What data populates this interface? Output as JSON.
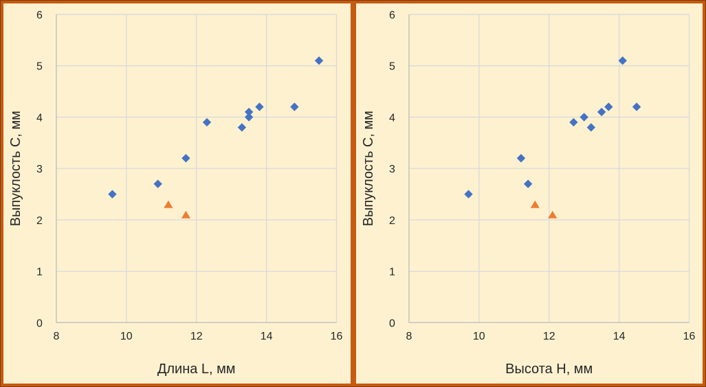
{
  "window": {
    "description": "Two side-by-side scatter charts on cream panels with orange borders"
  },
  "style": {
    "background": "#FDF1D0",
    "panel_border": "#C55A11",
    "outer_border": "#7D3C08",
    "gridline_color": "#D9D9D9",
    "axis_line_color": "#BFBFBF",
    "text_color": "#262626",
    "series1_color": "#4472C4",
    "series2_color": "#ED7D31"
  },
  "chart_data": [
    {
      "type": "scatter",
      "title": "",
      "xlabel": "Длина L, мм",
      "ylabel": "Выпуклость С, мм",
      "xlim": [
        8,
        16
      ],
      "ylim": [
        0,
        6
      ],
      "xticks": [
        8,
        10,
        12,
        14,
        16
      ],
      "yticks": [
        0,
        1,
        2,
        3,
        4,
        5,
        6
      ],
      "grid": true,
      "legend": "none",
      "series": [
        {
          "name": "blue-diamond-series",
          "marker": "diamond",
          "color": "#4472C4",
          "points": [
            [
              9.6,
              2.5
            ],
            [
              10.9,
              2.7
            ],
            [
              11.7,
              3.2
            ],
            [
              12.3,
              3.9
            ],
            [
              13.3,
              3.8
            ],
            [
              13.5,
              4.0
            ],
            [
              13.5,
              4.1
            ],
            [
              13.8,
              4.2
            ],
            [
              14.8,
              4.2
            ],
            [
              15.5,
              5.1
            ]
          ]
        },
        {
          "name": "orange-triangle-series",
          "marker": "triangle",
          "color": "#ED7D31",
          "points": [
            [
              11.2,
              2.3
            ],
            [
              11.7,
              2.1
            ]
          ]
        }
      ]
    },
    {
      "type": "scatter",
      "title": "",
      "xlabel": "Высота H, мм",
      "ylabel": "Выпуклость С, мм",
      "xlim": [
        8,
        16
      ],
      "ylim": [
        0,
        6
      ],
      "xticks": [
        8,
        10,
        12,
        14,
        16
      ],
      "yticks": [
        0,
        1,
        2,
        3,
        4,
        5,
        6
      ],
      "grid": true,
      "legend": "none",
      "series": [
        {
          "name": "blue-diamond-series",
          "marker": "diamond",
          "color": "#4472C4",
          "points": [
            [
              9.7,
              2.5
            ],
            [
              11.2,
              3.2
            ],
            [
              11.4,
              2.7
            ],
            [
              12.7,
              3.9
            ],
            [
              13.0,
              4.0
            ],
            [
              13.2,
              3.8
            ],
            [
              13.5,
              4.1
            ],
            [
              13.7,
              4.2
            ],
            [
              14.1,
              5.1
            ],
            [
              14.5,
              4.2
            ]
          ]
        },
        {
          "name": "orange-triangle-series",
          "marker": "triangle",
          "color": "#ED7D31",
          "points": [
            [
              11.6,
              2.3
            ],
            [
              12.1,
              2.1
            ]
          ]
        }
      ]
    }
  ]
}
